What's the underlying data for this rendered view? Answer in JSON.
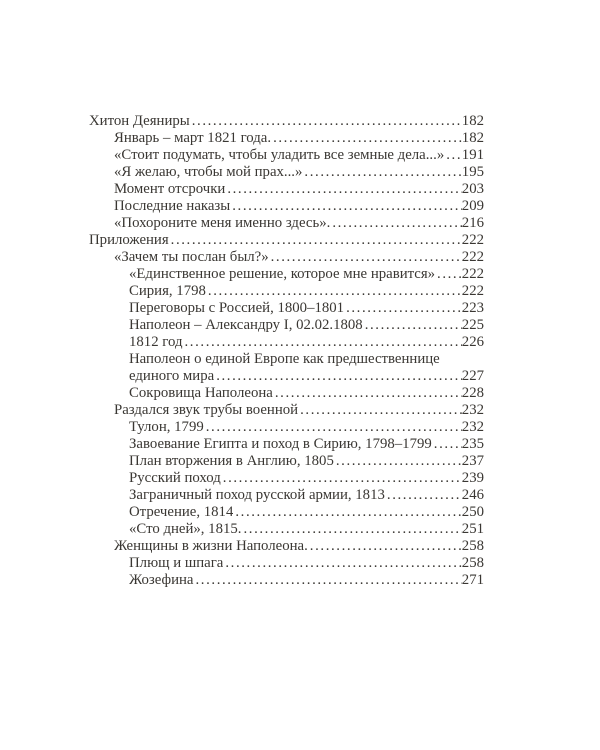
{
  "colors": {
    "background": "#ffffff",
    "text": "#3a3733"
  },
  "toc": {
    "entries": [
      {
        "level": 0,
        "text": "Хитон Деяниры",
        "page": "182"
      },
      {
        "level": 1,
        "text": "Январь – март 1821 года.",
        "page": "182"
      },
      {
        "level": 1,
        "text": "«Стоит подумать, чтобы уладить все земные дела...»",
        "page": "191"
      },
      {
        "level": 1,
        "text": "«Я желаю, чтобы мой прах...»",
        "page": "195"
      },
      {
        "level": 1,
        "text": "Момент отсрочки",
        "page": "203"
      },
      {
        "level": 1,
        "text": "Последние наказы",
        "page": "209"
      },
      {
        "level": 1,
        "text": "«Похороните меня именно здесь».",
        "page": "216"
      },
      {
        "level": 0,
        "text": "Приложения",
        "page": "222"
      },
      {
        "level": 1,
        "text": "«Зачем ты послан был?»",
        "page": "222"
      },
      {
        "level": 2,
        "text": "«Единственное решение, которое мне нравится»",
        "page": "222"
      },
      {
        "level": 2,
        "text": "Сирия, 1798",
        "page": "222"
      },
      {
        "level": 2,
        "text": "Переговоры с Россией, 1800–1801",
        "page": "223"
      },
      {
        "level": 2,
        "text": "Наполеон – Александру I, 02.02.1808",
        "page": "225"
      },
      {
        "level": 2,
        "text": "1812 год",
        "page": "226"
      },
      {
        "level": 2,
        "text": "Наполеон о единой Европе как предшественнице",
        "text2": "единого мира",
        "page": "227"
      },
      {
        "level": 2,
        "text": "Сокровища Наполеона",
        "page": "228"
      },
      {
        "level": 1,
        "text": "Раздался звук трубы военной",
        "page": "232"
      },
      {
        "level": 2,
        "text": "Тулон, 1799",
        "page": "232"
      },
      {
        "level": 2,
        "text": "Завоевание Египта и поход в Сирию, 1798–1799",
        "page": "235"
      },
      {
        "level": 2,
        "text": "План вторжения в Англию, 1805",
        "page": "237"
      },
      {
        "level": 2,
        "text": "Русский поход",
        "page": "239"
      },
      {
        "level": 2,
        "text": "Заграничный поход русской армии, 1813",
        "page": "246"
      },
      {
        "level": 2,
        "text": "Отречение, 1814",
        "page": "250"
      },
      {
        "level": 2,
        "text": "«Сто дней», 1815.",
        "page": "251"
      },
      {
        "level": 1,
        "text": "Женщины в жизни Наполеона.",
        "page": "258"
      },
      {
        "level": 2,
        "text": "Плющ и шпага",
        "page": "258"
      },
      {
        "level": 2,
        "text": "Жозефина",
        "page": "271"
      }
    ]
  }
}
